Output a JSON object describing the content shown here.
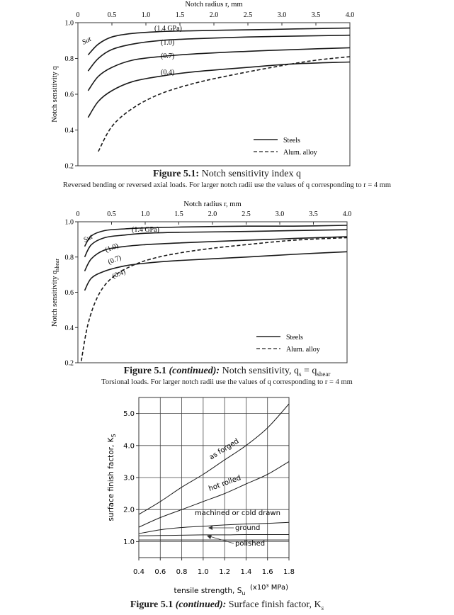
{
  "chart_data": [
    {
      "type": "line",
      "title": "Figure 5.1: Notch sensitivity index q",
      "title_parts": {
        "label": "Figure 5.1:",
        "text": "Notch sensitivity index q"
      },
      "subtitle": "Reversed bending or reversed axial loads. For larger notch radii use the values of q corresponding to r = 4 mm",
      "xlabel": "Notch radius r, mm",
      "ylabel": "Notch sensitivity q",
      "xlim": [
        0,
        4.0
      ],
      "ylim": [
        0.2,
        1.0
      ],
      "xticks": [
        "0",
        "0.5",
        "1.0",
        "1.5",
        "2.0",
        "2.5",
        "3.0",
        "3.5",
        "4.0"
      ],
      "yticks": [
        "1.0",
        "0.8",
        "0.6",
        "0.4",
        "0.2"
      ],
      "sut_label": "Sut",
      "legend": {
        "position": "bottom-right",
        "entries": [
          {
            "label": "Steels",
            "style": "solid"
          },
          {
            "label": "Alum. alloy",
            "style": "dashed"
          }
        ]
      },
      "series": [
        {
          "name": "(1.4 GPa)",
          "style": "solid",
          "x": [
            0.15,
            0.3,
            0.5,
            0.8,
            1.2,
            1.7,
            2.5,
            3.2,
            4.0
          ],
          "y": [
            0.82,
            0.88,
            0.92,
            0.94,
            0.95,
            0.955,
            0.96,
            0.965,
            0.97
          ]
        },
        {
          "name": "(1.0)",
          "style": "solid",
          "x": [
            0.15,
            0.3,
            0.5,
            0.8,
            1.2,
            1.7,
            2.5,
            3.2,
            4.0
          ],
          "y": [
            0.73,
            0.8,
            0.85,
            0.88,
            0.9,
            0.91,
            0.92,
            0.925,
            0.93
          ]
        },
        {
          "name": "(0.7)",
          "style": "solid",
          "x": [
            0.15,
            0.3,
            0.5,
            0.8,
            1.2,
            1.7,
            2.5,
            3.2,
            4.0
          ],
          "y": [
            0.62,
            0.7,
            0.75,
            0.79,
            0.81,
            0.825,
            0.84,
            0.85,
            0.86
          ]
        },
        {
          "name": "(0.4)",
          "style": "solid",
          "x": [
            0.15,
            0.3,
            0.5,
            0.8,
            1.2,
            1.7,
            2.5,
            3.2,
            4.0
          ],
          "y": [
            0.47,
            0.56,
            0.62,
            0.67,
            0.7,
            0.725,
            0.75,
            0.77,
            0.78
          ]
        },
        {
          "name": "",
          "style": "dashed",
          "x": [
            0.3,
            0.5,
            0.8,
            1.2,
            1.7,
            2.3,
            3.0,
            3.5,
            4.0
          ],
          "y": [
            0.28,
            0.42,
            0.52,
            0.6,
            0.66,
            0.71,
            0.76,
            0.79,
            0.81
          ]
        }
      ]
    },
    {
      "type": "line",
      "title": "Figure 5.1 (continued): Notch sensitivity, qs = qshear",
      "title_parts": {
        "label": "Figure 5.1",
        "cont": "(continued):",
        "text": "Notch sensitivity, q",
        "sub_s": "s",
        "eq": " = q",
        "sub_shear": "shear"
      },
      "subtitle": "Torsional loads. For larger notch radii use the values of q corresponding to r = 4 mm",
      "xlabel": "Notch radius r, mm",
      "ylabel": "Notch sensitivity qshear",
      "ylabel_parts": {
        "text": "Notch sensitivity q",
        "sub": "shear"
      },
      "xlim": [
        0,
        4.0
      ],
      "ylim": [
        0.2,
        1.0
      ],
      "xticks": [
        "0",
        "0.5",
        "1.0",
        "1.5",
        "2.0",
        "2.5",
        "3.0",
        "3.5",
        "4.0"
      ],
      "yticks": [
        "1.0",
        "0.8",
        "0.6",
        "0.4",
        "0.2"
      ],
      "sut_label": "Sut",
      "legend": {
        "position": "bottom-right",
        "entries": [
          {
            "label": "Steels",
            "style": "solid"
          },
          {
            "label": "Alum. alloy",
            "style": "dashed"
          }
        ]
      },
      "series": [
        {
          "name": "(1.4 GPa)",
          "style": "solid",
          "x": [
            0.1,
            0.2,
            0.4,
            0.7,
            1.0,
            1.5,
            2.5,
            3.2,
            4.0
          ],
          "y": [
            0.86,
            0.92,
            0.95,
            0.96,
            0.965,
            0.97,
            0.975,
            0.975,
            0.98
          ]
        },
        {
          "name": "(1.0)",
          "style": "solid",
          "x": [
            0.1,
            0.2,
            0.4,
            0.7,
            1.0,
            1.5,
            2.5,
            3.2,
            4.0
          ],
          "y": [
            0.8,
            0.87,
            0.91,
            0.925,
            0.935,
            0.94,
            0.945,
            0.95,
            0.955
          ]
        },
        {
          "name": "(0.7)",
          "style": "solid",
          "x": [
            0.1,
            0.2,
            0.4,
            0.7,
            1.0,
            1.5,
            2.5,
            3.2,
            4.0
          ],
          "y": [
            0.72,
            0.79,
            0.84,
            0.86,
            0.87,
            0.88,
            0.895,
            0.905,
            0.915
          ]
        },
        {
          "name": "(0.4)",
          "style": "solid",
          "x": [
            0.1,
            0.2,
            0.4,
            0.7,
            1.0,
            1.5,
            2.5,
            3.2,
            4.0
          ],
          "y": [
            0.61,
            0.68,
            0.72,
            0.75,
            0.765,
            0.78,
            0.8,
            0.815,
            0.83
          ]
        },
        {
          "name": "",
          "style": "dashed",
          "x": [
            0.05,
            0.15,
            0.3,
            0.5,
            0.8,
            1.2,
            1.8,
            2.5,
            3.2,
            4.0
          ],
          "y": [
            0.21,
            0.42,
            0.58,
            0.68,
            0.75,
            0.8,
            0.84,
            0.87,
            0.895,
            0.91
          ]
        }
      ]
    },
    {
      "type": "line",
      "title": "Figure 5.1 (continued): Surface finish factor, Ks",
      "title_parts": {
        "label": "Figure 5.1",
        "cont": "(continued):",
        "text": "Surface finish factor, K",
        "sub": "s"
      },
      "xlabel": "tensile strength, Su",
      "xlabel_parts": {
        "text": "tensile strength, S",
        "sub": "u"
      },
      "x_unit": "(x10³ MPa)",
      "ylabel": "surface finish factor, Ks",
      "ylabel_parts": {
        "text": "surface finish factor, K",
        "sub": "S"
      },
      "xlim": [
        0.4,
        1.8
      ],
      "ylim": [
        0.5,
        5.5
      ],
      "xticks": [
        "0.4",
        "0.6",
        "0.8",
        "1.0",
        "1.2",
        "1.4",
        "1.6",
        "1.8"
      ],
      "yticks": [
        "5.0",
        "4.0",
        "3.0",
        "2.0",
        "1.0"
      ],
      "grid": true,
      "series": [
        {
          "name": "as forged",
          "x": [
            0.4,
            0.6,
            0.8,
            1.0,
            1.2,
            1.4,
            1.6,
            1.8
          ],
          "y": [
            1.85,
            2.25,
            2.7,
            3.1,
            3.55,
            4.0,
            4.55,
            5.3
          ]
        },
        {
          "name": "hot rolled",
          "x": [
            0.4,
            0.6,
            0.8,
            1.0,
            1.2,
            1.4,
            1.6,
            1.8
          ],
          "y": [
            1.45,
            1.75,
            2.0,
            2.25,
            2.5,
            2.8,
            3.1,
            3.5
          ]
        },
        {
          "name": "machined or cold drawn",
          "x": [
            0.4,
            0.6,
            0.8,
            1.0,
            1.2,
            1.4,
            1.6,
            1.8
          ],
          "y": [
            1.25,
            1.37,
            1.44,
            1.48,
            1.52,
            1.55,
            1.57,
            1.6
          ]
        },
        {
          "name": "ground",
          "x": [
            0.4,
            0.6,
            0.8,
            1.0,
            1.2,
            1.4,
            1.6,
            1.8
          ],
          "y": [
            1.18,
            1.19,
            1.2,
            1.21,
            1.21,
            1.22,
            1.22,
            1.22
          ]
        },
        {
          "name": "polished",
          "x": [
            0.4,
            0.6,
            0.8,
            1.0,
            1.2,
            1.4,
            1.6,
            1.8
          ],
          "y": [
            1.05,
            1.05,
            1.05,
            1.05,
            1.05,
            1.05,
            1.05,
            1.05
          ]
        }
      ]
    }
  ]
}
